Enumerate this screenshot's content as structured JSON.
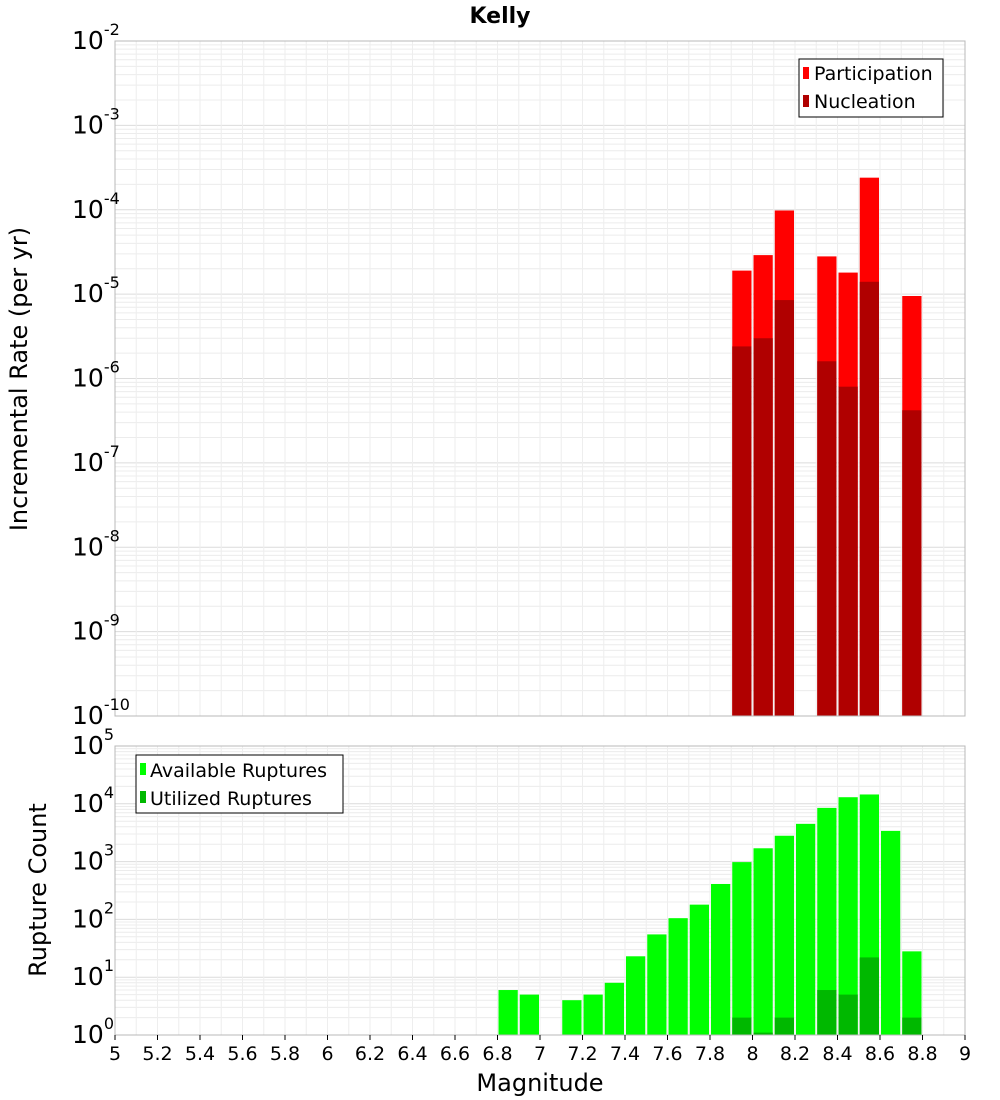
{
  "colors": {
    "participation": "#ff0000",
    "nucleation": "#b00000",
    "available": "#00ff00",
    "utilized": "#00b800",
    "grid": "#e8e8e8",
    "frame": "#b8b8b8"
  },
  "chart_data": [
    {
      "type": "bar",
      "title": "Kelly",
      "xlabel": "",
      "ylabel": "Incremental Rate (per yr)",
      "yscale": "log",
      "ylim": [
        1e-10,
        0.01
      ],
      "xlim": [
        5,
        9
      ],
      "ytick_exponents": [
        "-2",
        "-3",
        "-4",
        "-5",
        "-6",
        "-7",
        "-8",
        "-9",
        "-10"
      ],
      "legend": [
        "Participation",
        "Nucleation"
      ],
      "bin_width": 0.1,
      "series": [
        {
          "name": "Participation",
          "x": [
            7.95,
            8.05,
            8.15,
            8.35,
            8.45,
            8.55,
            8.75
          ],
          "values": [
            1.9e-05,
            2.9e-05,
            9.8e-05,
            2.8e-05,
            1.8e-05,
            0.00024,
            9.5e-06
          ]
        },
        {
          "name": "Nucleation",
          "x": [
            7.95,
            8.05,
            8.15,
            8.35,
            8.45,
            8.55,
            8.75
          ],
          "values": [
            2.4e-06,
            3e-06,
            8.5e-06,
            1.6e-06,
            8e-07,
            1.4e-05,
            4.2e-07
          ]
        }
      ]
    },
    {
      "type": "bar",
      "xlabel": "Magnitude",
      "ylabel": "Rupture Count",
      "yscale": "log",
      "ylim": [
        1,
        100000
      ],
      "xlim": [
        5,
        9
      ],
      "ytick_exponents": [
        "5",
        "4",
        "3",
        "2",
        "1",
        "0"
      ],
      "xticks": [
        "5",
        "5.2",
        "5.4",
        "5.6",
        "5.8",
        "6",
        "6.2",
        "6.4",
        "6.6",
        "6.8",
        "7",
        "7.2",
        "7.4",
        "7.6",
        "7.8",
        "8",
        "8.2",
        "8.4",
        "8.6",
        "8.8",
        "9"
      ],
      "legend": [
        "Available Ruptures",
        "Utilized Ruptures"
      ],
      "bin_width": 0.1,
      "series": [
        {
          "name": "Available Ruptures",
          "x": [
            6.85,
            6.95,
            7.15,
            7.25,
            7.35,
            7.45,
            7.55,
            7.65,
            7.75,
            7.85,
            7.95,
            8.05,
            8.15,
            8.25,
            8.35,
            8.45,
            8.55,
            8.65,
            8.75
          ],
          "values": [
            6,
            5,
            4,
            5,
            8,
            23,
            55,
            105,
            180,
            410,
            980,
            1700,
            2800,
            4500,
            8500,
            13000,
            14500,
            3400,
            28
          ]
        },
        {
          "name": "Utilized Ruptures",
          "x": [
            7.95,
            8.05,
            8.15,
            8.35,
            8.45,
            8.55,
            8.75
          ],
          "values": [
            2,
            1.1,
            2,
            6,
            5,
            22,
            2
          ]
        }
      ]
    }
  ]
}
